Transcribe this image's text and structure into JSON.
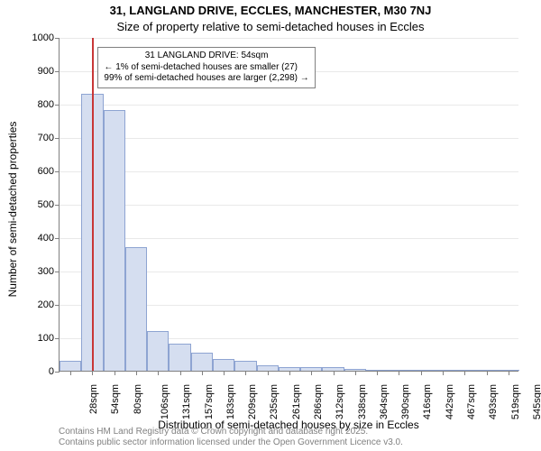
{
  "title_line1": "31, LANGLAND DRIVE, ECCLES, MANCHESTER, M30 7NJ",
  "title_line2": "Size of property relative to semi-detached houses in Eccles",
  "ylabel": "Number of semi-detached properties",
  "xlabel": "Distribution of semi-detached houses by size in Eccles",
  "footer_line1": "Contains HM Land Registry data © Crown copyright and database right 2025.",
  "footer_line2": "Contains public sector information licensed under the Open Government Licence v3.0.",
  "callout": {
    "line1": "31 LANGLAND DRIVE: 54sqm",
    "line2": "← 1% of semi-detached houses are smaller (27)",
    "line3": "99% of semi-detached houses are larger (2,298) →"
  },
  "chart": {
    "type": "histogram",
    "background_color": "#ffffff",
    "grid_color": "#e9e9e9",
    "axis_color": "#808080",
    "bar_fill": "#d5def0",
    "bar_border": "#8ea4d2",
    "marker_color": "#c83737",
    "callout_border": "#808080",
    "ylim": [
      0,
      1000
    ],
    "ytick_step": 100,
    "bar_width_ratio": 1.0,
    "title_fontsize": 13,
    "label_fontsize": 12,
    "tick_fontsize": 11,
    "callout_fontsize": 10,
    "footer_fontsize": 10,
    "footer_color": "#808080",
    "categories": [
      "28sqm",
      "54sqm",
      "80sqm",
      "106sqm",
      "131sqm",
      "157sqm",
      "183sqm",
      "209sqm",
      "235sqm",
      "261sqm",
      "286sqm",
      "312sqm",
      "338sqm",
      "364sqm",
      "390sqm",
      "416sqm",
      "442sqm",
      "467sqm",
      "493sqm",
      "519sqm",
      "545sqm"
    ],
    "values": [
      30,
      830,
      780,
      370,
      120,
      80,
      55,
      35,
      30,
      15,
      12,
      12,
      12,
      5,
      3,
      0,
      0,
      3,
      0,
      0,
      3
    ],
    "marker_category_index": 1
  }
}
